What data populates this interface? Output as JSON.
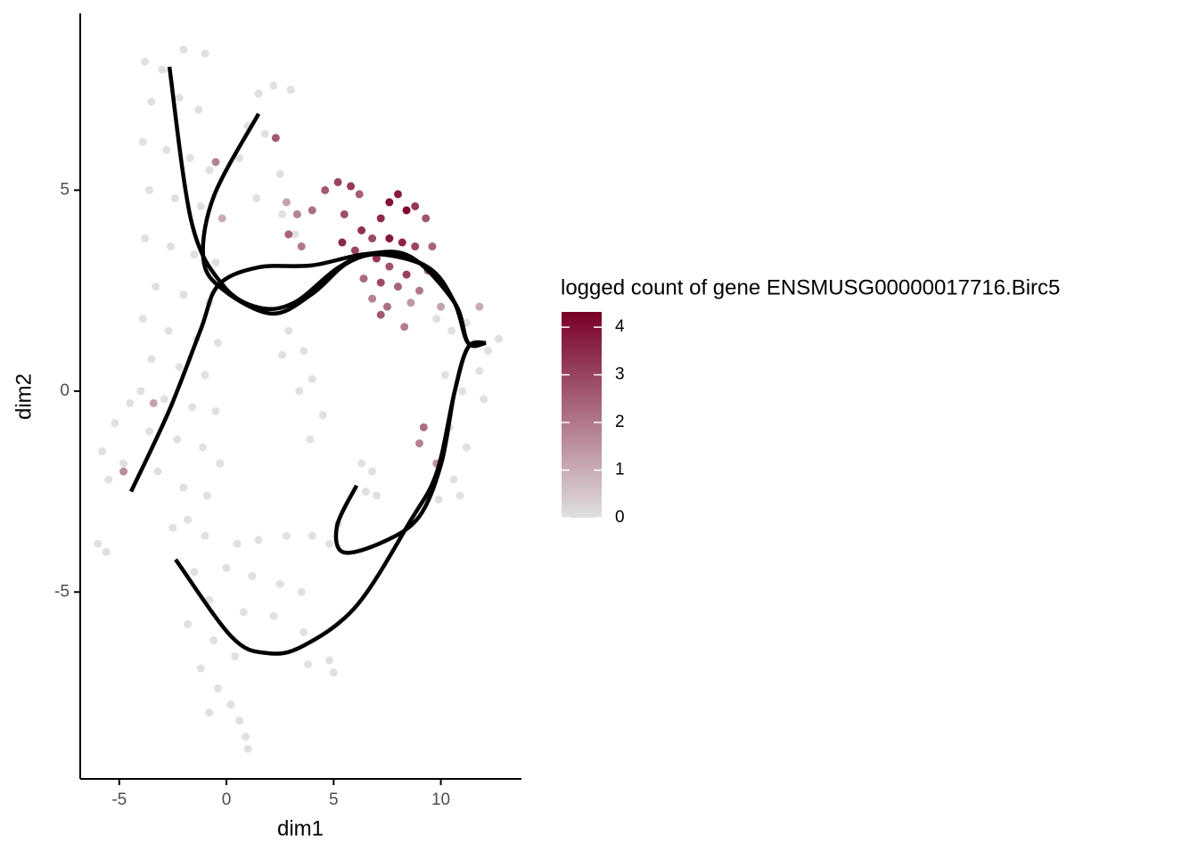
{
  "chart_data": {
    "type": "scatter",
    "x_label": "dim1",
    "y_label": "dim2",
    "xlim": [
      -6.82,
      13.76
    ],
    "ylim": [
      -9.65,
      9.4
    ],
    "xticks": [
      -5,
      0,
      5,
      10
    ],
    "yticks": [
      -5,
      0,
      5
    ],
    "x": [
      -3.8,
      -3.0,
      -2.0,
      -1.0,
      -3.5,
      -2.2,
      -1.3,
      -3.9,
      -2.8,
      -1.7,
      -0.8,
      -3.6,
      -2.4,
      -1.2,
      -3.8,
      -2.6,
      -1.5,
      -0.5,
      -3.3,
      -2.0,
      -0.8,
      -3.9,
      -2.7,
      -1.4,
      -0.4,
      -3.5,
      -2.2,
      -1.0,
      -4.0,
      -2.9,
      -1.6,
      -0.5,
      -3.6,
      -2.3,
      -1.1,
      -0.3,
      -3.2,
      -2.0,
      -0.9,
      -5.8,
      -5.2,
      -4.8,
      -5.5,
      -4.5,
      -6.0,
      -5.6,
      1.5,
      2.2,
      3.0,
      1.0,
      1.8,
      0.6,
      2.5,
      1.4,
      2.6,
      3.2,
      2.9,
      3.6,
      2.6,
      4.0,
      3.4,
      4.5,
      3.9,
      9.8,
      10.5,
      11.2,
      12.2,
      12.7,
      11.8,
      10.2,
      11.0,
      12.0,
      10.4,
      11.2,
      10.6,
      9.9,
      10.9,
      6.3,
      6.8,
      7.0,
      6.5,
      -2.5,
      -1.8,
      -1.0,
      0.5,
      1.5,
      2.8,
      4.0,
      4.8,
      5.2,
      -1.5,
      0.0,
      1.2,
      2.5,
      3.5,
      -0.8,
      0.8,
      2.2,
      3.6,
      -1.8,
      -0.6,
      0.4,
      3.8,
      4.8,
      5.0,
      -1.2,
      -0.4,
      0.2,
      0.6,
      0.9,
      1.0,
      -0.8,
      2.8,
      3.3,
      4.0,
      2.9,
      3.5,
      4.6,
      5.2,
      5.8,
      6.2,
      5.5,
      6.3,
      5.4,
      6.0,
      6.8,
      7.2,
      7.6,
      8.0,
      8.4,
      8.8,
      9.3,
      7.6,
      8.2,
      8.8,
      9.6,
      7.0,
      7.6,
      8.4,
      9.4,
      6.4,
      7.2,
      8.0,
      9.0,
      6.8,
      7.5,
      8.6,
      10.0,
      7.2,
      8.3,
      11.8,
      9.2,
      9.0,
      9.8,
      -0.5,
      2.3,
      -4.8,
      -3.4,
      -0.2
    ],
    "y": [
      8.2,
      8.0,
      8.5,
      8.4,
      7.2,
      7.3,
      7.0,
      6.2,
      6.0,
      5.8,
      5.5,
      5.0,
      4.8,
      4.6,
      3.8,
      3.6,
      3.4,
      3.2,
      2.6,
      2.4,
      2.2,
      1.8,
      1.5,
      1.3,
      1.2,
      0.8,
      0.6,
      0.4,
      0.0,
      -0.2,
      -0.4,
      -0.5,
      -1.0,
      -1.2,
      -1.4,
      -1.8,
      -2.0,
      -2.4,
      -2.6,
      -1.5,
      -0.8,
      -1.8,
      -2.2,
      -0.3,
      -3.8,
      -4.0,
      7.4,
      7.6,
      7.5,
      6.6,
      6.4,
      5.8,
      5.4,
      4.8,
      4.4,
      3.9,
      1.5,
      1.0,
      0.9,
      0.3,
      0.0,
      -0.6,
      -1.2,
      1.8,
      1.5,
      1.7,
      1.0,
      1.3,
      0.5,
      0.4,
      0.0,
      -0.2,
      -0.9,
      -1.4,
      -2.2,
      -2.7,
      -2.6,
      -1.8,
      -2.0,
      -2.6,
      -2.5,
      -3.4,
      -3.2,
      -3.6,
      -3.8,
      -3.7,
      -3.6,
      -3.6,
      -3.8,
      -3.3,
      -4.5,
      -4.4,
      -4.6,
      -4.8,
      -5.0,
      -5.2,
      -5.5,
      -5.6,
      -6.0,
      -5.8,
      -6.2,
      -6.6,
      -6.8,
      -6.7,
      -7.0,
      -6.9,
      -7.4,
      -7.8,
      -8.2,
      -8.6,
      -8.9,
      -8.0,
      4.7,
      4.4,
      4.5,
      3.9,
      3.6,
      5.0,
      5.2,
      5.1,
      4.9,
      4.4,
      4.0,
      3.7,
      3.5,
      3.8,
      4.3,
      4.7,
      4.9,
      4.5,
      4.6,
      4.3,
      3.8,
      3.7,
      3.6,
      3.6,
      3.3,
      3.1,
      2.9,
      3.0,
      2.8,
      2.7,
      2.6,
      2.5,
      2.3,
      2.1,
      2.2,
      2.1,
      1.9,
      1.6,
      2.1,
      -0.9,
      -1.3,
      -1.8,
      5.7,
      6.3,
      -2.0,
      -0.3,
      4.3
    ],
    "values": [
      0,
      0,
      0,
      0,
      0,
      0,
      0,
      0,
      0,
      0,
      0,
      0,
      0,
      0,
      0,
      0,
      0,
      0,
      0,
      0,
      0,
      0,
      0,
      0,
      0,
      0,
      0,
      0,
      0,
      0,
      0,
      0,
      0,
      0,
      0,
      0,
      0,
      0,
      0,
      0,
      0,
      0,
      0,
      0,
      0,
      0,
      0,
      0,
      0,
      0,
      0,
      0,
      0,
      0,
      0,
      0,
      0,
      0,
      0,
      0,
      0,
      0,
      0,
      0,
      0,
      0,
      0,
      0,
      0,
      0,
      0,
      0,
      0,
      0,
      0,
      0,
      0,
      0,
      0,
      0,
      0,
      0,
      0,
      0,
      0,
      0,
      0,
      0,
      0,
      0,
      0,
      0,
      0,
      0,
      0,
      0,
      0,
      0,
      0,
      0,
      0,
      0,
      0,
      0,
      0,
      0,
      0,
      0,
      0,
      0,
      0,
      0,
      1.2,
      1.8,
      2.2,
      2.4,
      2.0,
      2.6,
      3.0,
      3.2,
      2.5,
      2.8,
      3.4,
      3.6,
      3.0,
      2.9,
      3.5,
      4.0,
      3.8,
      4.1,
      3.2,
      2.7,
      3.9,
      3.6,
      3.0,
      2.4,
      3.3,
      2.7,
      3.1,
      2.5,
      2.3,
      2.9,
      2.4,
      2.0,
      1.8,
      2.2,
      1.4,
      1.2,
      2.6,
      1.9,
      1.0,
      2.2,
      1.8,
      1.5,
      1.8,
      2.6,
      1.6,
      1.2,
      1.0
    ],
    "colorbar": {
      "title": "logged count of gene ENSMUSG00000017716.Birc5",
      "lim": [
        0,
        4.32
      ],
      "ticks": [
        0,
        1,
        2,
        3,
        4
      ],
      "colors": [
        "#e0e0e0",
        "#7a0026"
      ]
    },
    "curve_color": "#000000",
    "curves": [
      {
        "x": [
          -2.66,
          -1.62,
          -0.17,
          1.5,
          3.16,
          5.24,
          6.9,
          9.4,
          10.64,
          11.27,
          12.1
        ],
        "y": [
          8.07,
          4.19,
          2.64,
          2.08,
          2.2,
          3.08,
          3.41,
          3.08,
          2.2,
          1.2,
          1.2
        ]
      },
      {
        "x": [
          1.5,
          -0.58,
          -1.08,
          -0.17,
          2.12,
          4.0,
          5.65,
          7.32,
          9.4,
          10.64,
          11.27,
          12.1
        ],
        "y": [
          6.9,
          4.86,
          3.3,
          2.53,
          1.93,
          2.42,
          3.19,
          3.41,
          3.08,
          2.2,
          1.2,
          1.2
        ]
      },
      {
        "x": [
          -4.45,
          -2.66,
          -1.2,
          -0.37,
          1.5,
          4.0,
          6.49,
          8.57,
          10.64,
          11.27,
          12.1
        ],
        "y": [
          -2.5,
          -0.47,
          1.53,
          2.64,
          3.08,
          3.13,
          3.41,
          3.35,
          2.2,
          1.2,
          1.2
        ]
      },
      {
        "x": [
          12.1,
          11.27,
          10.64,
          9.81,
          8.57,
          6.07,
          3.58,
          1.91,
          0.25,
          -2.37
        ],
        "y": [
          1.2,
          1.09,
          -0.02,
          -2.02,
          -3.24,
          -5.34,
          -6.34,
          -6.52,
          -6.12,
          -4.19
        ]
      },
      {
        "x": [
          6.07,
          5.16,
          5.45,
          7.32,
          8.98,
          10.02,
          10.64,
          11.27,
          12.1
        ],
        "y": [
          -2.35,
          -3.35,
          -4.01,
          -3.75,
          -3.13,
          -1.8,
          -0.02,
          1.09,
          1.2
        ]
      }
    ]
  }
}
